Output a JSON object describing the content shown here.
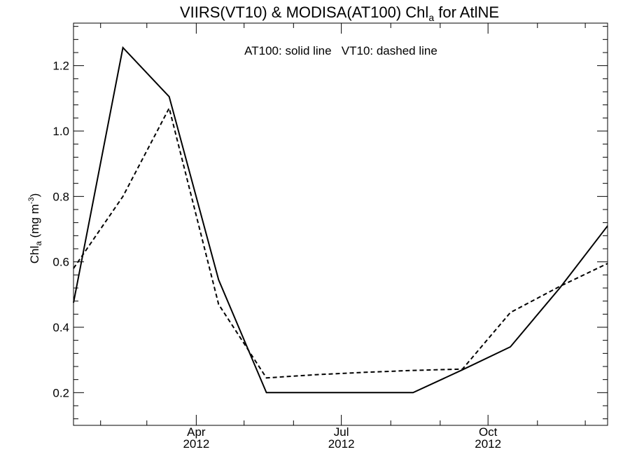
{
  "chart_data": {
    "type": "line",
    "title": {
      "prefix": "VIIRS(VT10) & MODISA(AT100)  Chl",
      "subscript": "a",
      "suffix": " for AtlNE"
    },
    "annotation": "AT100: solid line   VT10: dashed line",
    "ylabel": {
      "base": "Chl",
      "subscript": "a",
      "units": " (mg m",
      "superscript": "-3",
      "close": ")"
    },
    "xlim": [
      "2012-01-15",
      "2012-12-15"
    ],
    "ylim": [
      0.1,
      1.33
    ],
    "yticks": [
      {
        "value": 0.2,
        "label": "0.2"
      },
      {
        "value": 0.4,
        "label": "0.4"
      },
      {
        "value": 0.6,
        "label": "0.6"
      },
      {
        "value": 0.8,
        "label": "0.8"
      },
      {
        "value": 1.0,
        "label": "1.0"
      },
      {
        "value": 1.2,
        "label": "1.2"
      }
    ],
    "xticks": [
      {
        "date": "2012-04-01",
        "month": "Apr",
        "year": "2012"
      },
      {
        "date": "2012-07-01",
        "month": "Jul",
        "year": "2012"
      },
      {
        "date": "2012-10-01",
        "month": "Oct",
        "year": "2012"
      }
    ],
    "x_minor_ticks": [
      "2012-02-01",
      "2012-03-01",
      "2012-05-01",
      "2012-06-01",
      "2012-08-01",
      "2012-09-01",
      "2012-11-01",
      "2012-12-01"
    ],
    "grid": false,
    "series": [
      {
        "style": "solid",
        "x": [
          "2012-01-15",
          "2012-02-15",
          "2012-03-15",
          "2012-04-15",
          "2012-05-15",
          "2012-06-15",
          "2012-07-15",
          "2012-08-15",
          "2012-09-15",
          "2012-10-15",
          "2012-11-15",
          "2012-12-15"
        ],
        "y": [
          0.475,
          1.255,
          1.105,
          0.545,
          0.2,
          0.2,
          0.2,
          0.2,
          0.27,
          0.34,
          0.52,
          0.71
        ]
      },
      {
        "style": "dashed",
        "x": [
          "2012-01-15",
          "2012-02-15",
          "2012-03-15",
          "2012-04-15",
          "2012-05-15",
          "2012-06-15",
          "2012-07-15",
          "2012-08-15",
          "2012-09-15",
          "2012-10-15",
          "2012-11-15",
          "2012-12-15"
        ],
        "y": [
          0.58,
          0.8,
          1.07,
          0.47,
          0.245,
          0.255,
          0.262,
          0.268,
          0.272,
          0.445,
          0.525,
          0.595
        ]
      }
    ]
  }
}
